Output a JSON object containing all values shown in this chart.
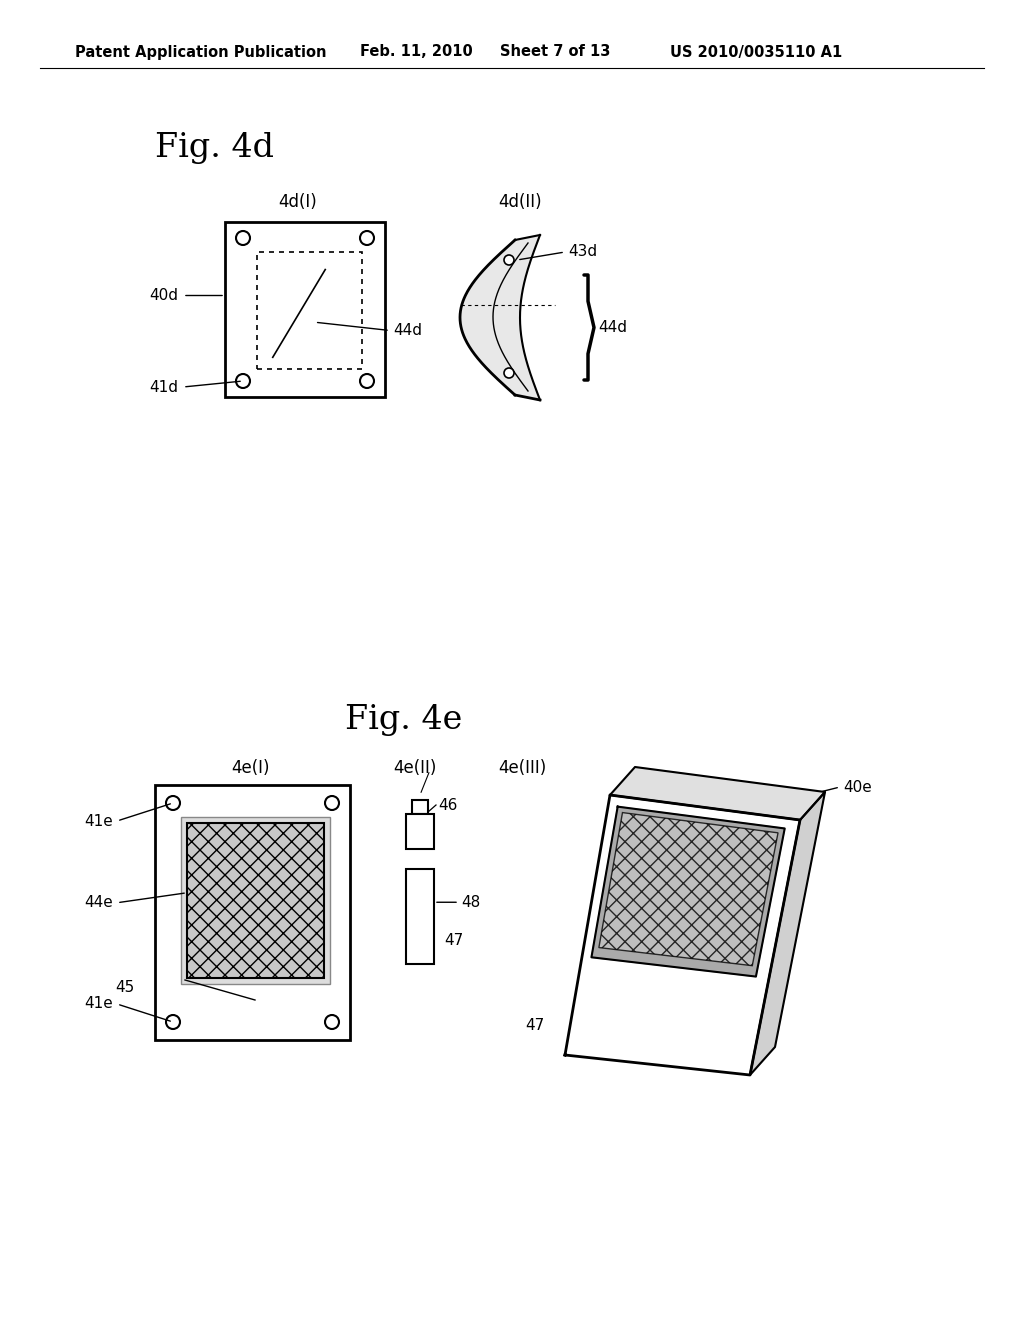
{
  "bg_color": "#ffffff",
  "header_text": "Patent Application Publication",
  "header_date": "Feb. 11, 2010",
  "header_sheet": "Sheet 7 of 13",
  "header_patent": "US 2010/0035110 A1",
  "fig4d_title": "Fig. 4d",
  "fig4e_title": "Fig. 4e",
  "fig4d_I_label": "4d(I)",
  "fig4d_II_label": "4d(II)",
  "fig4e_I_label": "4e(I)",
  "fig4e_II_label": "4e(II)",
  "fig4e_III_label": "4e(III)"
}
